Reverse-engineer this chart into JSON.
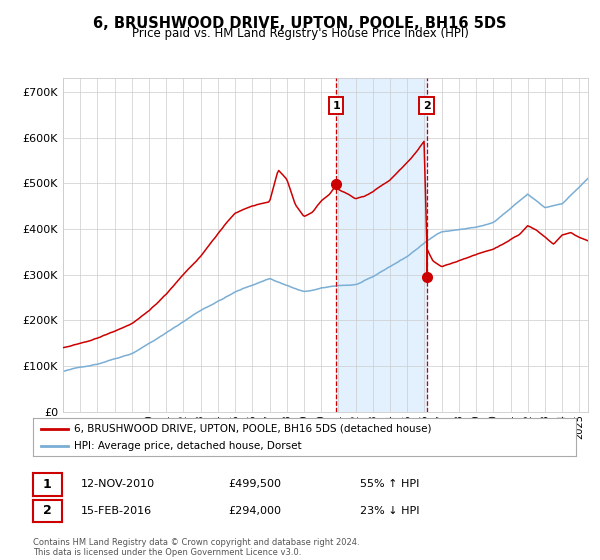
{
  "title": "6, BRUSHWOOD DRIVE, UPTON, POOLE, BH16 5DS",
  "subtitle": "Price paid vs. HM Land Registry's House Price Index (HPI)",
  "legend_line1": "6, BRUSHWOOD DRIVE, UPTON, POOLE, BH16 5DS (detached house)",
  "legend_line2": "HPI: Average price, detached house, Dorset",
  "annotation1_date": "12-NOV-2010",
  "annotation1_price": 499500,
  "annotation1_price_str": "£499,500",
  "annotation1_pct": "55% ↑ HPI",
  "annotation2_date": "15-FEB-2016",
  "annotation2_price": 294000,
  "annotation2_price_str": "£294,000",
  "annotation2_pct": "23% ↓ HPI",
  "footer": "Contains HM Land Registry data © Crown copyright and database right 2024.\nThis data is licensed under the Open Government Licence v3.0.",
  "red_color": "#cc0000",
  "blue_color": "#7aaed4",
  "background_color": "#ffffff",
  "grid_color": "#cccccc",
  "shade_color": "#ddeeff",
  "ylim": [
    0,
    730000
  ],
  "yticks": [
    0,
    100000,
    200000,
    300000,
    400000,
    500000,
    600000,
    700000
  ],
  "ytick_labels": [
    "£0",
    "£100K",
    "£200K",
    "£300K",
    "£400K",
    "£500K",
    "£600K",
    "£700K"
  ],
  "event1_x": 2010.87,
  "event2_x": 2016.12,
  "event1_house_y": 499500,
  "event2_house_y": 294000,
  "event2_hpi_y": 390000,
  "xmin": 1995,
  "xmax": 2025.5
}
